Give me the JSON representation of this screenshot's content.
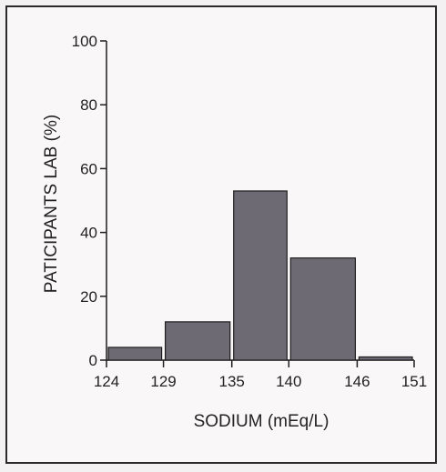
{
  "chart_data": {
    "type": "bar",
    "xlabel": "SODIUM   (mEq/L)",
    "ylabel": "PATICIPANTS LAB (%)",
    "x_ticks": [
      "124",
      "129",
      "135",
      "140",
      "146",
      "151"
    ],
    "y_ticks": [
      "0",
      "20",
      "40",
      "60",
      "80",
      "100"
    ],
    "ylim": [
      0,
      100
    ],
    "bins": [
      {
        "from": 124,
        "to": 129,
        "value": 4
      },
      {
        "from": 129,
        "to": 135,
        "value": 12
      },
      {
        "from": 135,
        "to": 140,
        "value": 53
      },
      {
        "from": 140,
        "to": 146,
        "value": 32
      },
      {
        "from": 146,
        "to": 151,
        "value": 1
      }
    ],
    "colors": {
      "bar": "#6e6a73",
      "bar_stroke": "#1e1e1e",
      "axis": "#1e1e1e"
    }
  }
}
